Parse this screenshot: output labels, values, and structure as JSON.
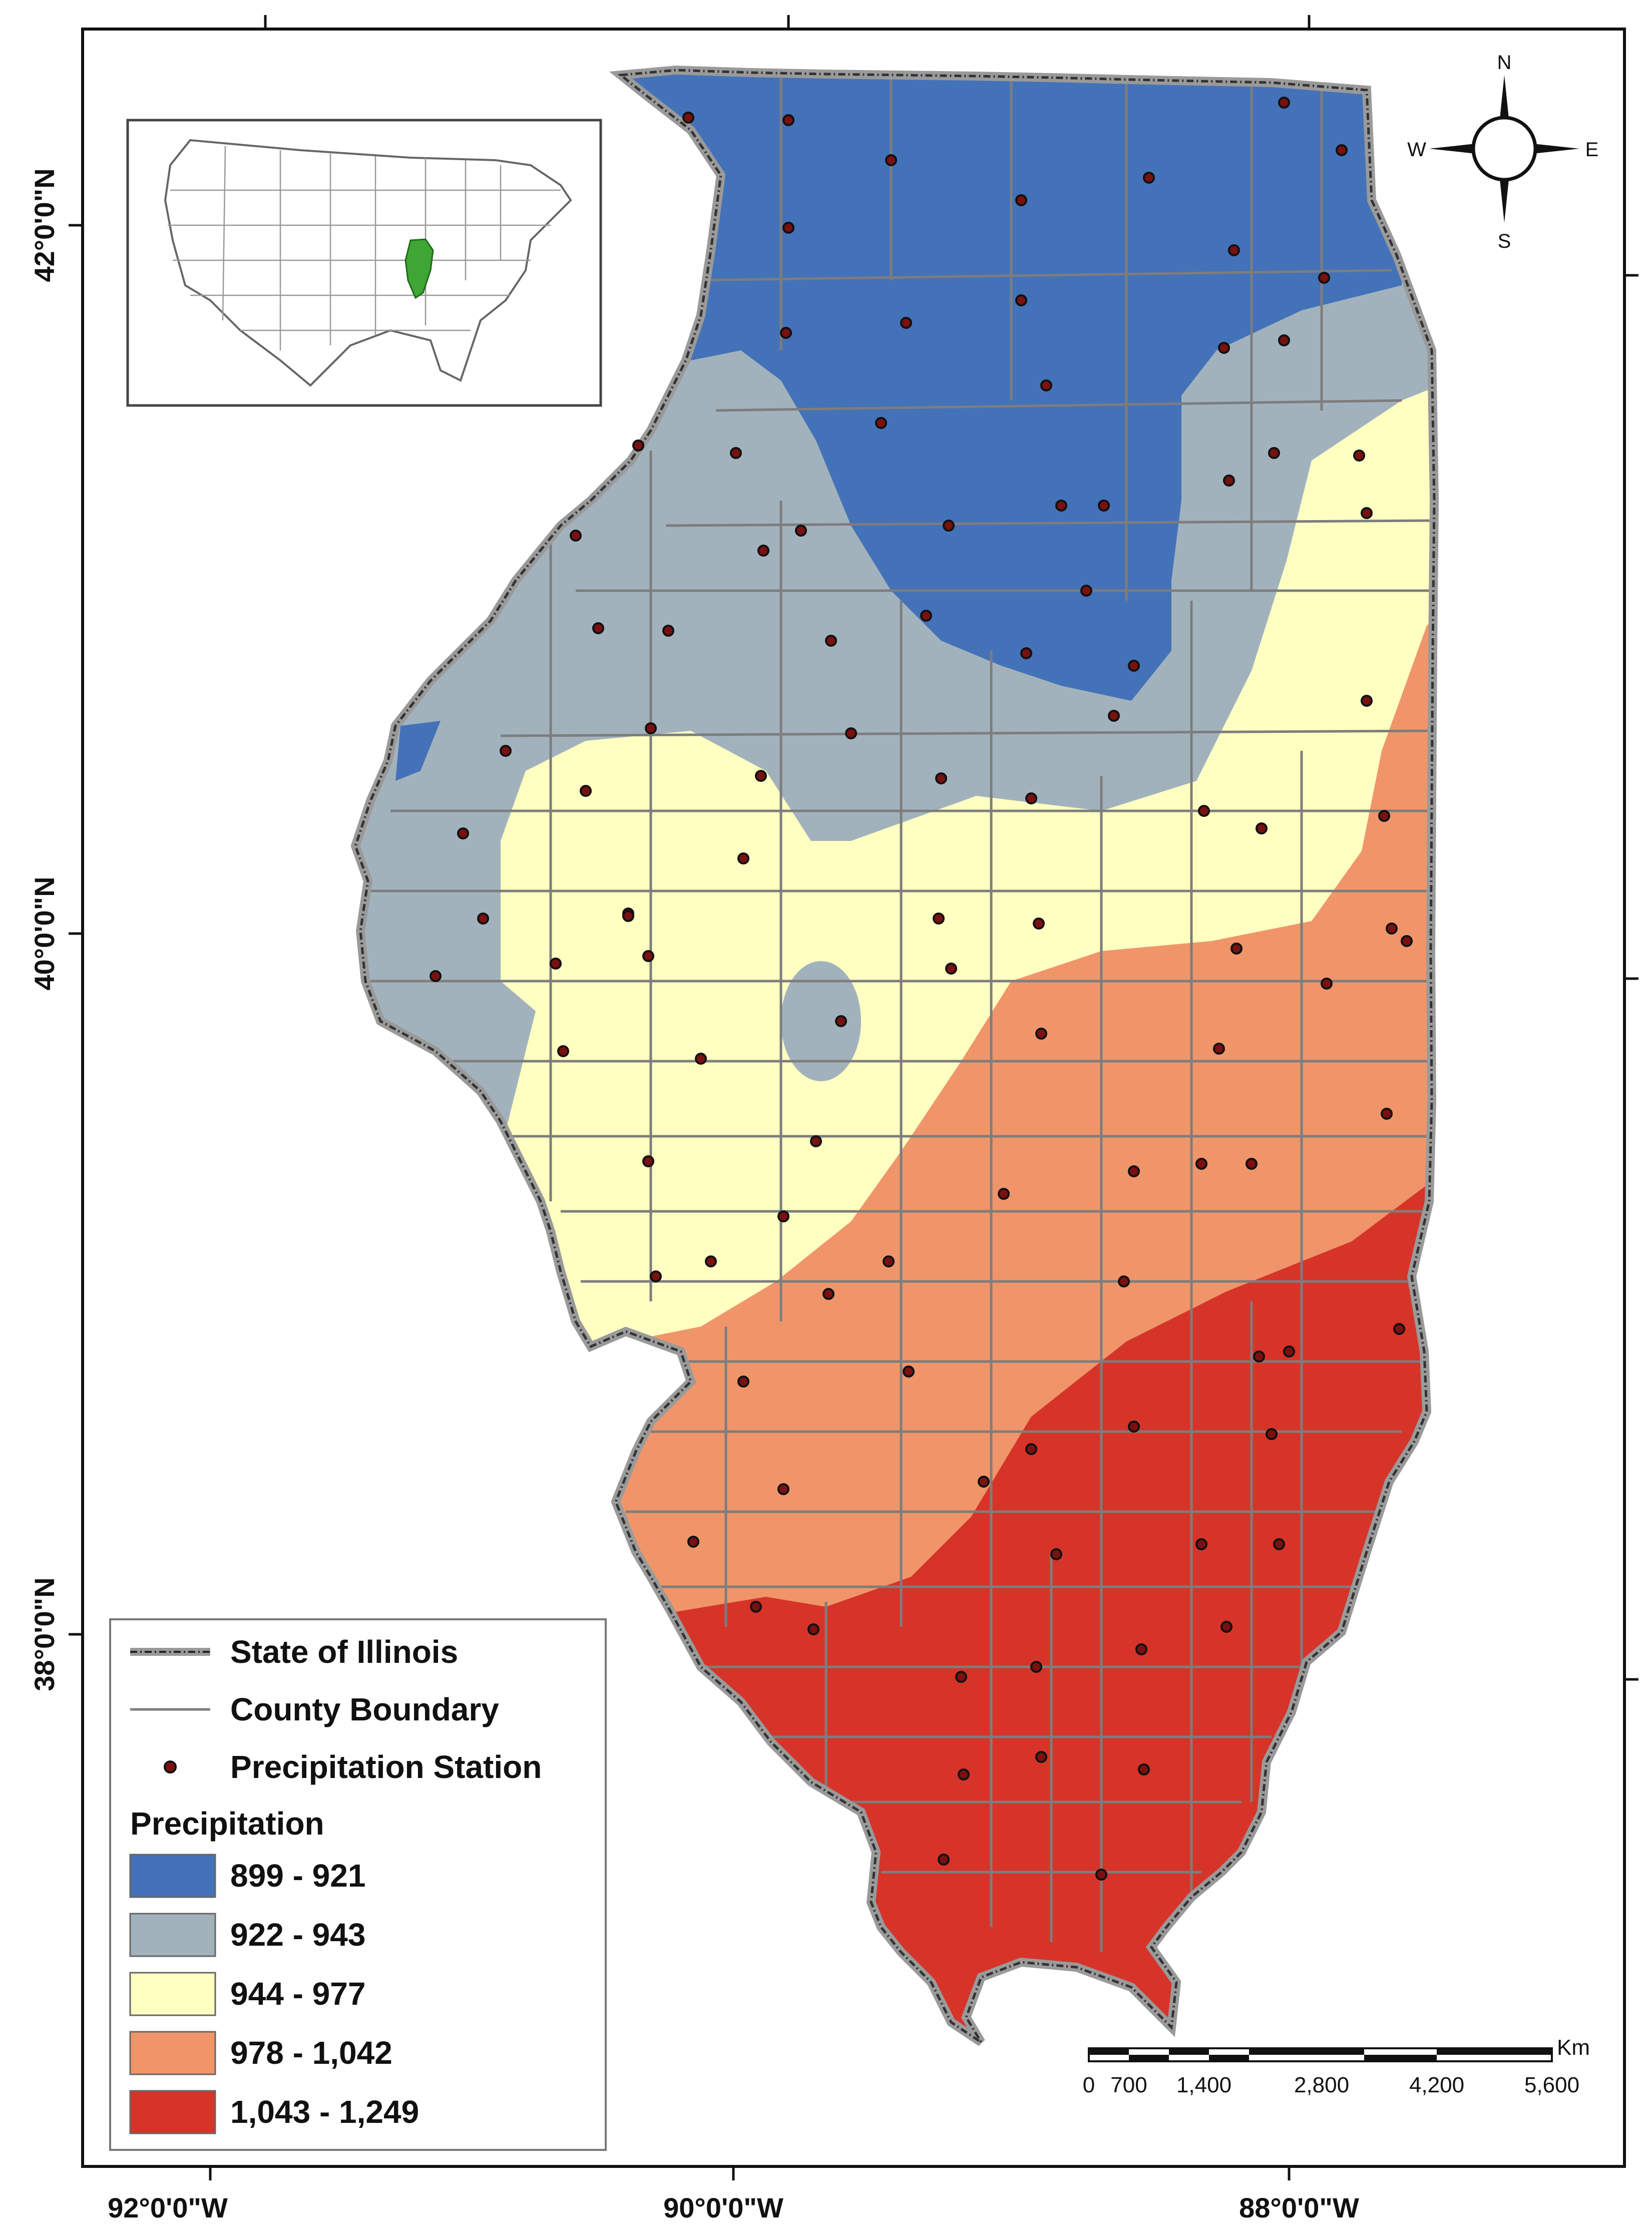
{
  "map": {
    "latitude_labels": [
      "42°0'0\"N",
      "40°0'0\"N",
      "38°0'0\"N"
    ],
    "longitude_labels": [
      "92°0'0\"W",
      "90°0'0\"W",
      "88°0'0\"W"
    ]
  },
  "compass": {
    "north": "N",
    "south": "S",
    "east": "E",
    "west": "W"
  },
  "legend": {
    "state_label": "State of Illinois",
    "county_label": "County Boundary",
    "station_label": "Precipitation Station",
    "precip_title": "Precipitation",
    "classes": [
      {
        "range": "899 - 921",
        "color": "#4472B8"
      },
      {
        "range": "922 - 943",
        "color": "#A2B2BD"
      },
      {
        "range": "944 - 977",
        "color": "#FFFFC2"
      },
      {
        "range": "978 - 1,042",
        "color": "#F0956A"
      },
      {
        "range": "1,043 - 1,249",
        "color": "#D63429"
      }
    ]
  },
  "scale_bar": {
    "unit": "Km",
    "labels": [
      "0",
      "700",
      "1,400",
      "2,800",
      "4,200",
      "5,600"
    ]
  },
  "inset": {
    "highlight_color": "#3FA535",
    "description_state": "Illinois"
  }
}
